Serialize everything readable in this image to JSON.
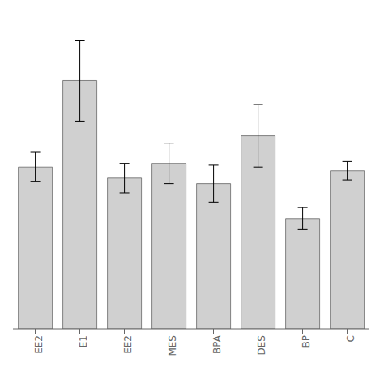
{
  "chart_data": {
    "type": "bar",
    "categories": [
      "EE2",
      "E1",
      "EE2",
      "MES",
      "BPA",
      "DES",
      "BP",
      "C"
    ],
    "values": [
      88,
      135,
      82,
      90,
      79,
      105,
      60,
      86
    ],
    "errors": [
      8,
      22,
      8,
      11,
      10,
      17,
      6,
      5
    ],
    "color": "#d0d0d0",
    "ylim": [
      0,
      170
    ],
    "grid": false,
    "tick_labels": "x"
  }
}
